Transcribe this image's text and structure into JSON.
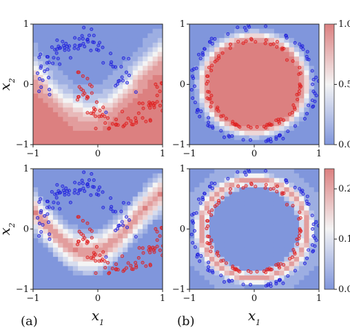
{
  "figure": {
    "panel_labels": [
      "(a)",
      "(b)"
    ]
  },
  "colors": {
    "class0": "#2222dd",
    "class1": "#e02020",
    "cmap_low": "#8096dc",
    "cmap_mid": "#f4f4f4",
    "cmap_high": "#dc8080"
  },
  "chart_data": [
    {
      "id": "top-left",
      "type": "scatter",
      "description_dataset": "two moons",
      "xlim": [
        -1,
        1
      ],
      "ylim": [
        -1,
        1
      ],
      "xticks": [
        "−1",
        "0",
        "1"
      ],
      "yticks": [
        "−1",
        "0",
        "1"
      ],
      "xlabel": "",
      "ylabel": "x",
      "ylabel_sub": "2",
      "background": "predicted probability contour",
      "series": [
        {
          "class": 0,
          "color": "#2222dd",
          "shape": "upper moon",
          "x_range": [
            -0.95,
            0.45
          ],
          "y_range": [
            -0.35,
            0.85
          ]
        },
        {
          "class": 1,
          "color": "#e02020",
          "shape": "lower moon",
          "x_range": [
            -0.4,
            0.95
          ],
          "y_range": [
            -0.85,
            0.3
          ]
        }
      ]
    },
    {
      "id": "top-right",
      "type": "scatter",
      "description_dataset": "concentric circles",
      "xlim": [
        -1,
        1
      ],
      "ylim": [
        -1,
        1
      ],
      "xticks": [
        "−1",
        "0",
        "1"
      ],
      "yticks": [
        "−1",
        "0",
        "1"
      ],
      "xlabel": "",
      "ylabel": "",
      "background": "predicted probability contour",
      "colorbar": {
        "ticks": [
          "0.0",
          "0.5",
          "1.0"
        ],
        "min": 0.0,
        "max": 1.0
      },
      "series": [
        {
          "class": 0,
          "color": "#2222dd",
          "shape": "outer ring",
          "radius": 0.95
        },
        {
          "class": 1,
          "color": "#e02020",
          "shape": "inner ring",
          "radius": 0.7
        }
      ]
    },
    {
      "id": "bottom-left",
      "type": "scatter",
      "description_dataset": "two moons",
      "xlim": [
        -1,
        1
      ],
      "ylim": [
        -1,
        1
      ],
      "xticks": [
        "−1",
        "0",
        "1"
      ],
      "yticks": [
        "−1",
        "0",
        "1"
      ],
      "xlabel": "x",
      "xlabel_sub": "1",
      "ylabel": "x",
      "ylabel_sub": "2",
      "background": "uncertainty contour",
      "series": [
        {
          "class": 0,
          "color": "#2222dd",
          "shape": "upper moon"
        },
        {
          "class": 1,
          "color": "#e02020",
          "shape": "lower moon"
        }
      ]
    },
    {
      "id": "bottom-right",
      "type": "scatter",
      "description_dataset": "concentric circles",
      "xlim": [
        -1,
        1
      ],
      "ylim": [
        -1,
        1
      ],
      "xticks": [
        "−1",
        "0",
        "1"
      ],
      "yticks": [
        "−1",
        "0",
        "1"
      ],
      "xlabel": "x",
      "xlabel_sub": "1",
      "ylabel": "",
      "background": "uncertainty contour",
      "colorbar": {
        "ticks": [
          "0.0",
          "0.1",
          "0.2"
        ],
        "min": 0.0,
        "max": 0.24
      },
      "series": [
        {
          "class": 0,
          "color": "#2222dd",
          "shape": "outer ring",
          "radius": 0.95
        },
        {
          "class": 1,
          "color": "#e02020",
          "shape": "inner ring",
          "radius": 0.7
        }
      ]
    }
  ]
}
